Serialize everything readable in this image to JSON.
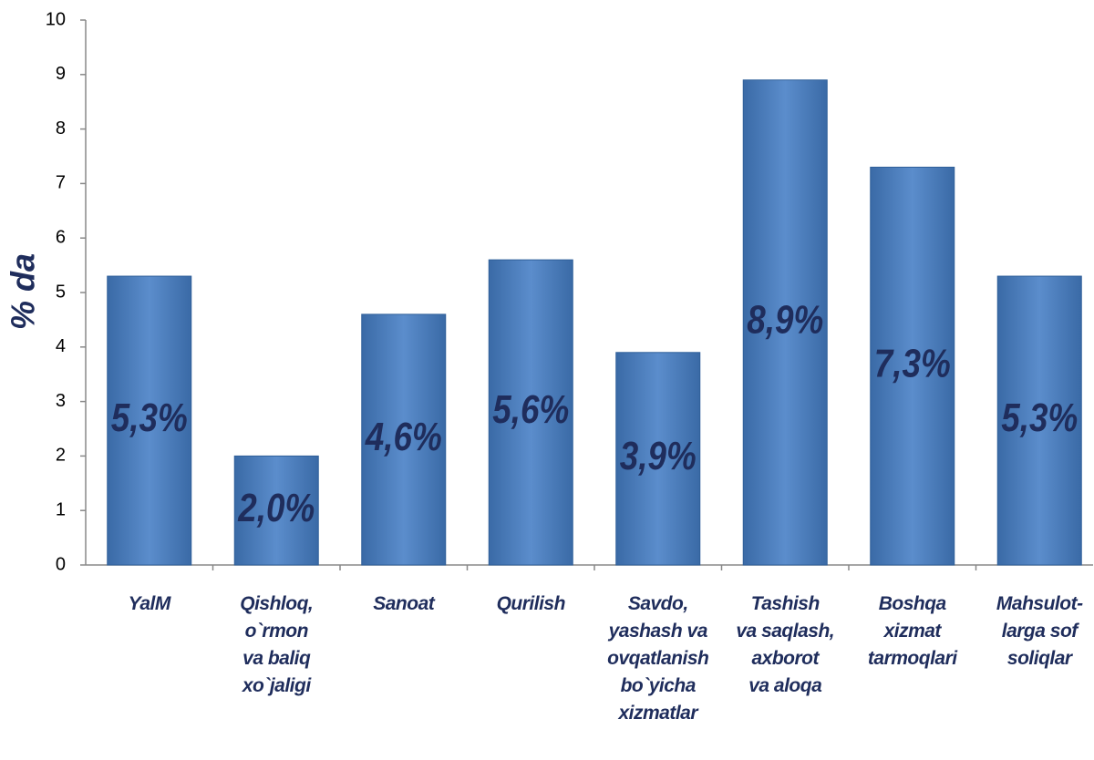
{
  "chart_data": {
    "type": "bar",
    "y_label": "% da",
    "categories": [
      "YalM",
      "Qishloq,\no`rmon\nva baliq\nxo`jaligi",
      "Sanoat",
      "Qurilish",
      "Savdo,\nyashash va\novqatlanish\nbo`yicha\nxizmatlar",
      "Tashish\nva saqlash,\naxborot\nva aloqa",
      "Boshqa\nxizmat\ntarmoqlari",
      "Mahsulot-\nlarga sof\nsoliqlar"
    ],
    "values": [
      5.3,
      2.0,
      4.6,
      5.6,
      3.9,
      8.9,
      7.3,
      5.3
    ],
    "value_labels": [
      "5,3%",
      "2,0%",
      "4,6%",
      "5,6%",
      "3,9%",
      "8,9%",
      "7,3%",
      "5,3%"
    ],
    "color": "#4f81bd",
    "ylim": [
      0,
      10
    ],
    "yticks": [
      0,
      1,
      2,
      3,
      4,
      5,
      6,
      7,
      8,
      9,
      10
    ],
    "grid": false
  }
}
